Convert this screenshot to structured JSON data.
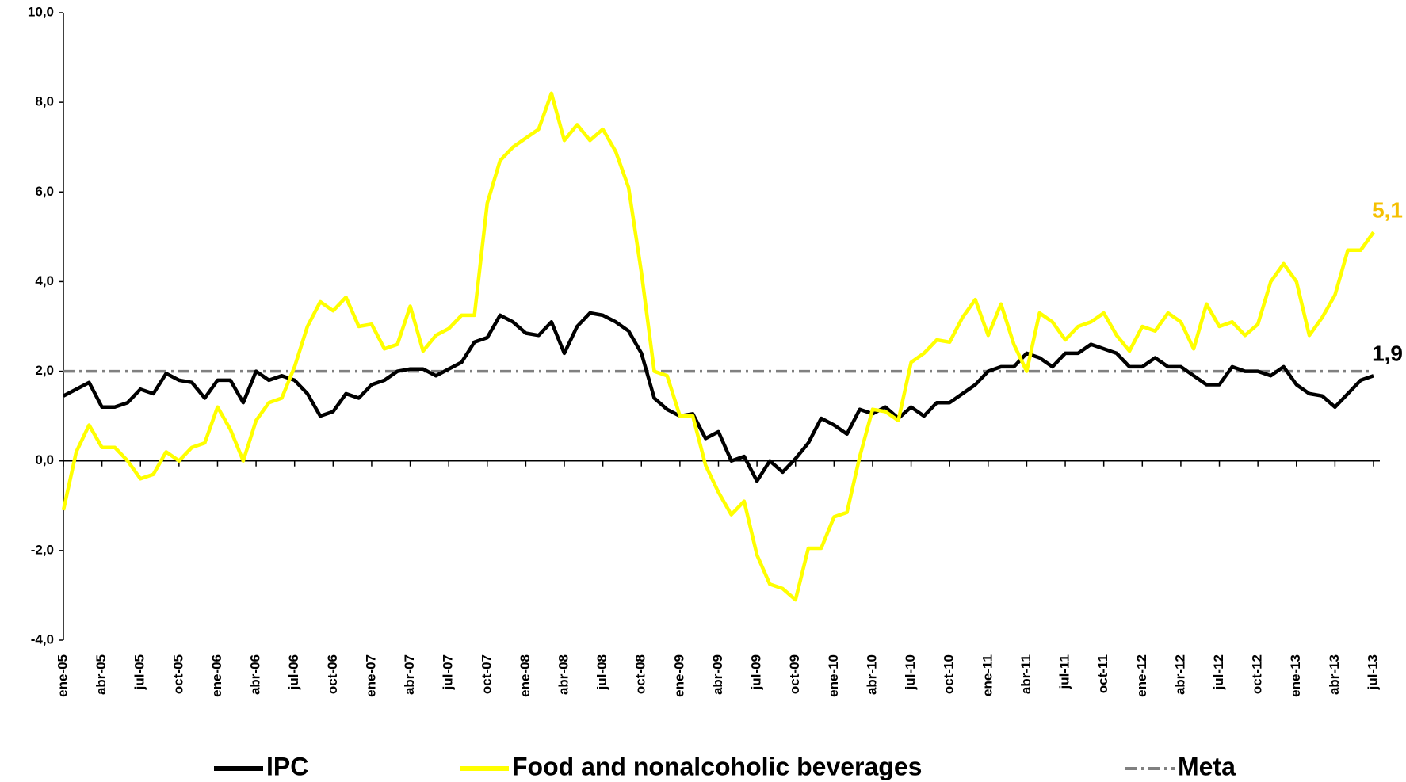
{
  "chart_data": {
    "type": "line",
    "categories": [
      "ene-05",
      null,
      null,
      "abr-05",
      null,
      null,
      "jul-05",
      null,
      null,
      "oct-05",
      null,
      null,
      "ene-06",
      null,
      null,
      "abr-06",
      null,
      null,
      "jul-06",
      null,
      null,
      "oct-06",
      null,
      null,
      "ene-07",
      null,
      null,
      "abr-07",
      null,
      null,
      "jul-07",
      null,
      null,
      "oct-07",
      null,
      null,
      "ene-08",
      null,
      null,
      "abr-08",
      null,
      null,
      "jul-08",
      null,
      null,
      "oct-08",
      null,
      null,
      "ene-09",
      null,
      null,
      "abr-09",
      null,
      null,
      "jul-09",
      null,
      null,
      "oct-09",
      null,
      null,
      "ene-10",
      null,
      null,
      "abr-10",
      null,
      null,
      "jul-10",
      null,
      null,
      "oct-10",
      null,
      null,
      "ene-11",
      null,
      null,
      "abr-11",
      null,
      null,
      "jul-11",
      null,
      null,
      "oct-11",
      null,
      null,
      "ene-12",
      null,
      null,
      "abr-12",
      null,
      null,
      "jul-12",
      null,
      null,
      "oct-12",
      null,
      null,
      "ene-13",
      null,
      null,
      "abr-13",
      null,
      null,
      "jul-13"
    ],
    "series": [
      {
        "name": "IPC",
        "color": "#000000",
        "values": [
          1.45,
          1.6,
          1.75,
          1.2,
          1.2,
          1.3,
          1.6,
          1.5,
          1.95,
          1.8,
          1.75,
          1.4,
          1.8,
          1.8,
          1.3,
          2.0,
          1.8,
          1.9,
          1.8,
          1.5,
          1.0,
          1.1,
          1.5,
          1.4,
          1.7,
          1.8,
          2.0,
          2.05,
          2.05,
          1.9,
          2.05,
          2.2,
          2.65,
          2.75,
          3.25,
          3.1,
          2.85,
          2.8,
          3.1,
          2.4,
          3.0,
          3.3,
          3.25,
          3.1,
          2.9,
          2.4,
          1.4,
          1.15,
          1.0,
          1.05,
          0.5,
          0.65,
          0.0,
          0.1,
          -0.45,
          0.0,
          -0.25,
          0.05,
          0.4,
          0.95,
          0.8,
          0.6,
          1.15,
          1.05,
          1.2,
          0.95,
          1.2,
          1.0,
          1.3,
          1.3,
          1.5,
          1.7,
          2.0,
          2.1,
          2.1,
          2.4,
          2.3,
          2.1,
          2.4,
          2.4,
          2.6,
          2.5,
          2.4,
          2.1,
          2.1,
          2.3,
          2.1,
          2.1,
          1.9,
          1.7,
          1.7,
          2.1,
          2.0,
          2.0,
          1.9,
          2.1,
          1.7,
          1.5,
          1.45,
          1.2,
          1.5,
          1.8,
          1.9
        ],
        "value_labels": [
          null,
          null,
          null,
          null,
          null,
          null,
          null,
          null,
          null,
          null,
          null,
          null,
          null,
          null,
          null,
          null,
          null,
          null,
          null,
          null,
          null,
          null,
          null,
          null,
          null,
          null,
          null,
          null,
          null,
          null,
          null,
          null,
          null,
          null,
          null,
          null,
          null,
          null,
          null,
          null,
          null,
          null,
          null,
          null,
          null,
          null,
          null,
          null,
          null,
          null,
          null,
          null,
          null,
          null,
          null,
          null,
          null,
          null,
          null,
          null,
          null,
          null,
          null,
          null,
          null,
          null,
          null,
          null,
          null,
          null,
          null,
          null,
          null,
          null,
          null,
          null,
          null,
          null,
          null,
          null,
          null,
          null,
          null,
          null,
          null,
          null,
          null,
          null,
          null,
          null,
          null,
          null,
          null,
          null,
          null,
          null,
          null,
          null,
          null,
          null,
          null,
          null,
          "1,9"
        ],
        "label_color": "#000000"
      },
      {
        "name": "Food and nonalcoholic beverages",
        "color": "#ffff00",
        "values": [
          -1.1,
          0.2,
          0.8,
          0.3,
          0.3,
          0.0,
          -0.4,
          -0.3,
          0.2,
          0.0,
          0.3,
          0.4,
          1.2,
          0.7,
          0.0,
          0.9,
          1.3,
          1.4,
          2.1,
          3.0,
          3.55,
          3.35,
          3.65,
          3.0,
          3.05,
          2.5,
          2.6,
          3.45,
          2.45,
          2.8,
          2.95,
          3.25,
          3.25,
          5.75,
          6.7,
          7.0,
          7.2,
          7.4,
          8.2,
          7.15,
          7.5,
          7.15,
          7.4,
          6.9,
          6.1,
          4.2,
          2.0,
          1.9,
          1.0,
          1.0,
          -0.1,
          -0.7,
          -1.2,
          -0.9,
          -2.1,
          -2.75,
          -2.85,
          -3.1,
          -1.95,
          -1.95,
          -1.25,
          -1.15,
          0.1,
          1.15,
          1.1,
          0.9,
          2.2,
          2.4,
          2.7,
          2.65,
          3.2,
          3.6,
          2.8,
          3.5,
          2.6,
          2.0,
          3.3,
          3.1,
          2.7,
          3.0,
          3.1,
          3.3,
          2.8,
          2.45,
          3.0,
          2.9,
          3.3,
          3.1,
          2.5,
          3.5,
          3.0,
          3.1,
          2.8,
          3.05,
          4.0,
          4.4,
          4.0,
          2.8,
          3.2,
          3.7,
          4.7,
          4.7,
          5.1
        ],
        "value_labels": [
          null,
          null,
          null,
          null,
          null,
          null,
          null,
          null,
          null,
          null,
          null,
          null,
          null,
          null,
          null,
          null,
          null,
          null,
          null,
          null,
          null,
          null,
          null,
          null,
          null,
          null,
          null,
          null,
          null,
          null,
          null,
          null,
          null,
          null,
          null,
          null,
          null,
          null,
          null,
          null,
          null,
          null,
          null,
          null,
          null,
          null,
          null,
          null,
          null,
          null,
          null,
          null,
          null,
          null,
          null,
          null,
          null,
          null,
          null,
          null,
          null,
          null,
          null,
          null,
          null,
          null,
          null,
          null,
          null,
          null,
          null,
          null,
          null,
          null,
          null,
          null,
          null,
          null,
          null,
          null,
          null,
          null,
          null,
          null,
          null,
          null,
          null,
          null,
          null,
          null,
          null,
          null,
          null,
          null,
          null,
          null,
          null,
          null,
          null,
          null,
          null,
          null,
          "5,1"
        ],
        "label_color": "#f5c000"
      },
      {
        "name": "Meta",
        "color": "#808080",
        "dash": true,
        "values": [
          2,
          2,
          2,
          2,
          2,
          2,
          2,
          2,
          2,
          2,
          2,
          2,
          2,
          2,
          2,
          2,
          2,
          2,
          2,
          2,
          2,
          2,
          2,
          2,
          2,
          2,
          2,
          2,
          2,
          2,
          2,
          2,
          2,
          2,
          2,
          2,
          2,
          2,
          2,
          2,
          2,
          2,
          2,
          2,
          2,
          2,
          2,
          2,
          2,
          2,
          2,
          2,
          2,
          2,
          2,
          2,
          2,
          2,
          2,
          2,
          2,
          2,
          2,
          2,
          2,
          2,
          2,
          2,
          2,
          2,
          2,
          2,
          2,
          2,
          2,
          2,
          2,
          2,
          2,
          2,
          2,
          2,
          2,
          2,
          2,
          2,
          2,
          2,
          2,
          2,
          2,
          2,
          2,
          2,
          2,
          2,
          2,
          2,
          2,
          2,
          2,
          2,
          2
        ]
      }
    ],
    "ylim": [
      -4,
      10
    ],
    "yticks": [
      {
        "value": -4,
        "label": "-4,0"
      },
      {
        "value": -2,
        "label": "-2,0"
      },
      {
        "value": 0,
        "label": "0,0"
      },
      {
        "value": 2,
        "label": "2,0"
      },
      {
        "value": 4,
        "label": "4,0"
      },
      {
        "value": 6,
        "label": "6,0"
      },
      {
        "value": 8,
        "label": "8,0"
      },
      {
        "value": 10,
        "label": "10,0"
      }
    ],
    "legend": "bottom"
  }
}
